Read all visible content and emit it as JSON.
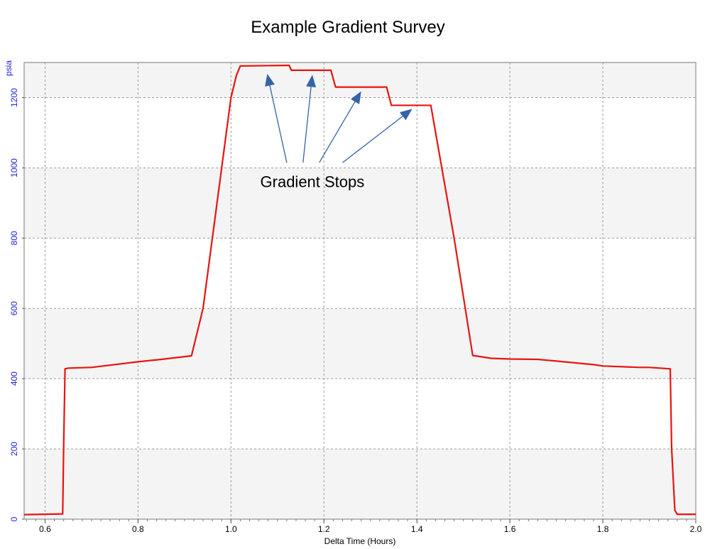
{
  "chart_data": {
    "type": "line",
    "title": "Example Gradient Survey",
    "xlabel": "Delta Time (Hours)",
    "ylabel": "psia",
    "xlim": [
      0.555,
      2.0
    ],
    "ylim": [
      0,
      1300
    ],
    "xticks": [
      0.6,
      0.8,
      1.0,
      1.2,
      1.4,
      1.6,
      1.8,
      2.0
    ],
    "yticks": [
      0,
      200,
      400,
      600,
      800,
      1000,
      1200
    ],
    "grid": true,
    "series": [
      {
        "color": "#e8140e",
        "x": [
          0.555,
          0.638,
          0.64,
          0.643,
          0.65,
          0.7,
          0.8,
          0.85,
          0.915,
          0.94,
          1.0,
          1.012,
          1.02,
          1.125,
          1.13,
          1.215,
          1.225,
          1.335,
          1.345,
          1.43,
          1.48,
          1.52,
          1.56,
          1.6,
          1.66,
          1.7,
          1.78,
          1.8,
          1.88,
          1.9,
          1.945,
          1.948,
          1.955,
          1.96,
          2.0
        ],
        "y": [
          13,
          15,
          200,
          428,
          430,
          432,
          448,
          455,
          465,
          600,
          1200,
          1265,
          1290,
          1292,
          1278,
          1278,
          1230,
          1230,
          1178,
          1178,
          800,
          466,
          458,
          456,
          455,
          450,
          440,
          436,
          432,
          432,
          428,
          200,
          25,
          14,
          14
        ]
      }
    ],
    "annotations": [
      {
        "text": "Gradient Stops",
        "x": 1.175,
        "y": 945
      }
    ],
    "arrows": [
      {
        "from": [
          1.12,
          1015
        ],
        "to": [
          1.078,
          1268
        ]
      },
      {
        "from": [
          1.155,
          1015
        ],
        "to": [
          1.175,
          1265
        ]
      },
      {
        "from": [
          1.19,
          1015
        ],
        "to": [
          1.28,
          1218
        ]
      },
      {
        "from": [
          1.24,
          1015
        ],
        "to": [
          1.39,
          1168
        ]
      }
    ],
    "colors": {
      "line": "#e8140e",
      "arrow": "#3464a8",
      "grid": "#9a9a9a",
      "band": "#f4f4f4",
      "ytick": "#1f1fd6"
    }
  }
}
